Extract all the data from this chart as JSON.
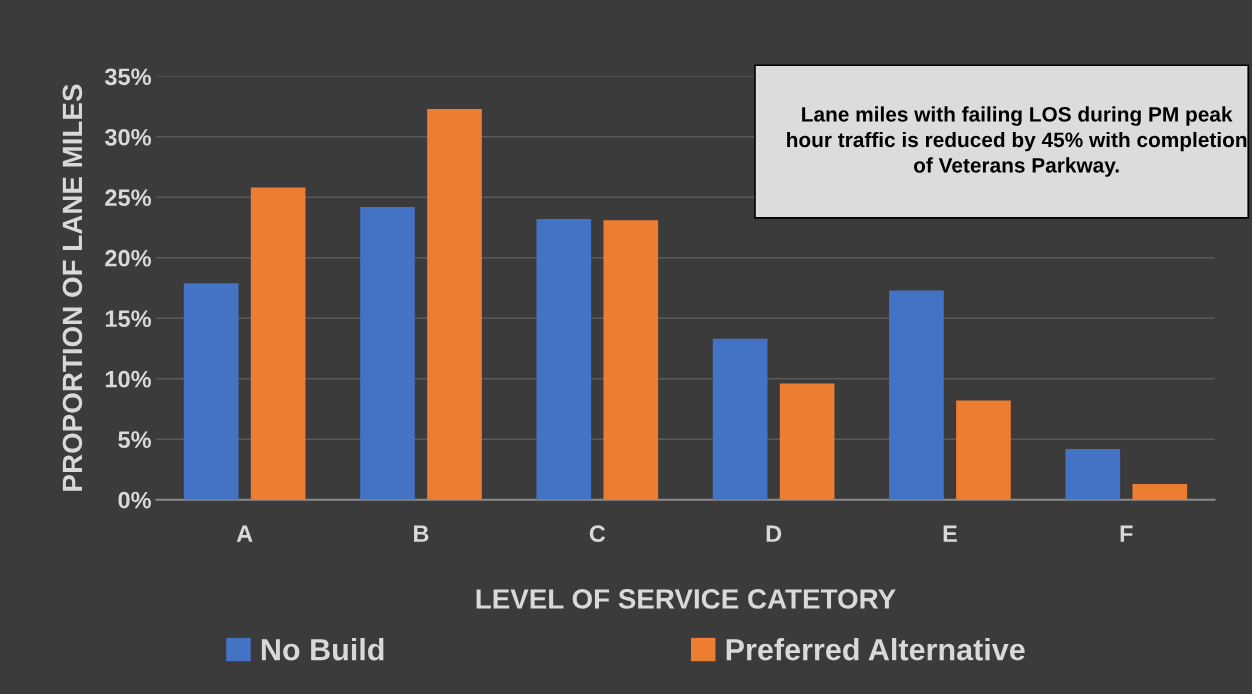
{
  "chart_data": {
    "type": "bar",
    "xlabel": "LEVEL OF SERVICE CATETORY",
    "ylabel": "PROPORTION OF LANE MILES",
    "categories": [
      "A",
      "B",
      "C",
      "D",
      "E",
      "F"
    ],
    "series": [
      {
        "name": "No Build",
        "color": "#4472c4",
        "values": [
          17.9,
          24.2,
          23.2,
          13.3,
          17.3,
          4.2
        ]
      },
      {
        "name": "Preferred Alternative",
        "color": "#ed7d31",
        "values": [
          25.8,
          32.3,
          23.1,
          9.6,
          8.2,
          1.3
        ]
      }
    ],
    "ylim": [
      0,
      35
    ],
    "yticks": [
      {
        "value": 0,
        "label": "0%"
      },
      {
        "value": 5,
        "label": "5%"
      },
      {
        "value": 10,
        "label": "10%"
      },
      {
        "value": 15,
        "label": "15%"
      },
      {
        "value": 20,
        "label": "20%"
      },
      {
        "value": 25,
        "label": "25%"
      },
      {
        "value": 30,
        "label": "30%"
      },
      {
        "value": 35,
        "label": "35%"
      }
    ],
    "grid": "y",
    "legend": "bottom",
    "annotations": [
      "Lane miles with failing LOS during PM peak hour traffic is reduced by 45% with completion of Veterans Parkway."
    ]
  }
}
